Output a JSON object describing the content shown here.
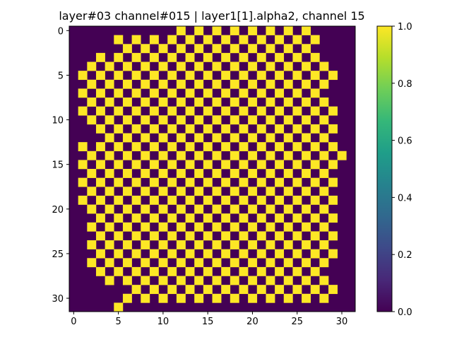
{
  "chart_data": {
    "type": "heatmap",
    "title": "layer#03 channel#015 | layer1[1].alpha2, channel 15",
    "xlabel": "",
    "ylabel": "",
    "rows": 32,
    "cols": 32,
    "pattern": "checkerboard: cell = 1 where (row+col) is even and inside the circular mask, else 0",
    "row_mask_ranges": [
      [
        12,
        26
      ],
      [
        5,
        28
      ],
      [
        6,
        27
      ],
      [
        3,
        28
      ],
      [
        2,
        28
      ],
      [
        1,
        29
      ],
      [
        1,
        29
      ],
      [
        1,
        28
      ],
      [
        1,
        28
      ],
      [
        1,
        29
      ],
      [
        2,
        29
      ],
      [
        2,
        29
      ],
      [
        3,
        28
      ],
      [
        1,
        29
      ],
      [
        1,
        30
      ],
      [
        1,
        29
      ],
      [
        1,
        29
      ],
      [
        1,
        29
      ],
      [
        1,
        29
      ],
      [
        1,
        29
      ],
      [
        2,
        29
      ],
      [
        2,
        29
      ],
      [
        2,
        29
      ],
      [
        2,
        29
      ],
      [
        2,
        29
      ],
      [
        2,
        29
      ],
      [
        2,
        29
      ],
      [
        3,
        28
      ],
      [
        4,
        28
      ],
      [
        6,
        29
      ],
      [
        6,
        28
      ],
      [
        5,
        5
      ]
    ],
    "x_ticks": [
      0,
      5,
      10,
      15,
      20,
      25,
      30
    ],
    "y_ticks": [
      0,
      5,
      10,
      15,
      20,
      25,
      30
    ],
    "colorbar": {
      "min": 0.0,
      "max": 1.0,
      "ticks": [
        "0.0",
        "0.2",
        "0.4",
        "0.6",
        "0.8",
        "1.0"
      ]
    },
    "colormap": "viridis",
    "colors": {
      "low": "#440154",
      "high": "#fde725"
    },
    "grid": false
  }
}
